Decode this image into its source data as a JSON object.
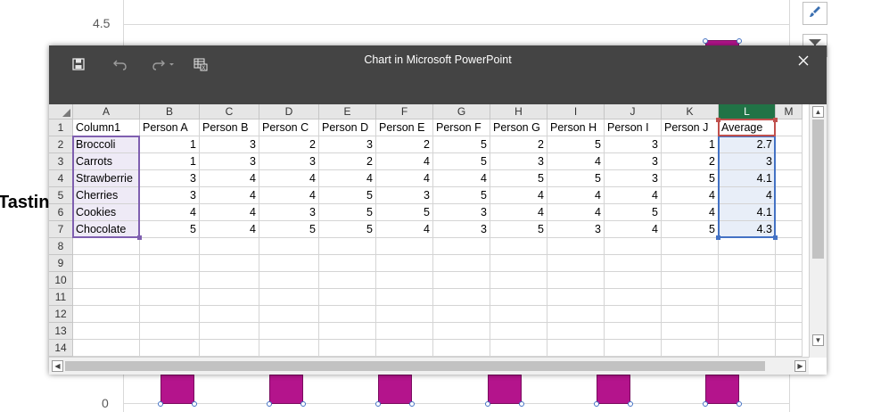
{
  "background": {
    "y_axis_top_label": "4.5",
    "y_axis_bottom_label": "0",
    "title_fragment": "Tastin",
    "bar_color": "#b4148c"
  },
  "window": {
    "title": "Chart in Microsoft PowerPoint",
    "icons": [
      "save-icon",
      "undo-icon",
      "redo-icon",
      "edit-data-icon",
      "close-icon"
    ]
  },
  "sheet": {
    "columns": [
      "A",
      "B",
      "C",
      "D",
      "E",
      "F",
      "G",
      "H",
      "I",
      "J",
      "K",
      "L",
      "M"
    ],
    "selected_column": "L",
    "rows": [
      "1",
      "2",
      "3",
      "4",
      "5",
      "6",
      "7",
      "8",
      "9",
      "10",
      "11",
      "12",
      "13",
      "14"
    ],
    "header": [
      "Column1",
      "Person A",
      "Person B",
      "Person C",
      "Person D",
      "Person E",
      "Person F",
      "Person G",
      "Person H",
      "Person I",
      "Person J",
      "Average"
    ],
    "data": [
      [
        "Broccoli",
        "1",
        "3",
        "2",
        "3",
        "2",
        "5",
        "2",
        "5",
        "3",
        "1",
        "2.7"
      ],
      [
        "Carrots",
        "1",
        "3",
        "3",
        "2",
        "4",
        "5",
        "3",
        "4",
        "3",
        "2",
        "3"
      ],
      [
        "Strawberrie",
        "3",
        "4",
        "4",
        "4",
        "4",
        "4",
        "5",
        "5",
        "3",
        "5",
        "4.1"
      ],
      [
        "Cherries",
        "3",
        "4",
        "4",
        "5",
        "3",
        "5",
        "4",
        "4",
        "4",
        "4",
        "4"
      ],
      [
        "Cookies",
        "4",
        "4",
        "3",
        "5",
        "5",
        "3",
        "4",
        "4",
        "5",
        "4",
        "4.1"
      ],
      [
        "Chocolate",
        "5",
        "4",
        "5",
        "5",
        "4",
        "3",
        "5",
        "3",
        "4",
        "5",
        "4.3"
      ]
    ]
  },
  "colors": {
    "accent": "#217346",
    "titlebar": "#444444",
    "category_range": "#7f5fb0",
    "value_range": "#4472c4",
    "series_name_range": "#c0504d"
  }
}
